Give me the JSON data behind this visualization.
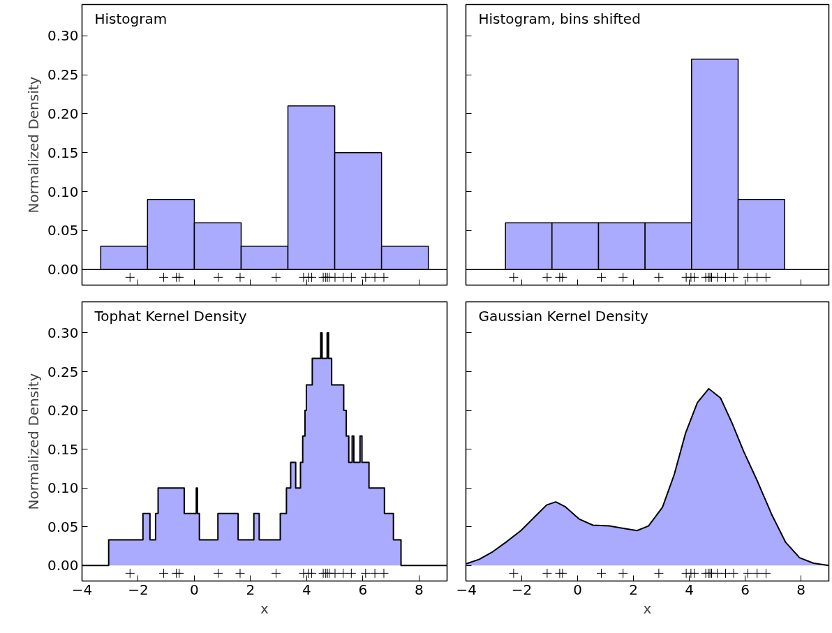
{
  "chart_data": [
    {
      "type": "histogram",
      "title": "Histogram",
      "ylabel": "Normalized Density",
      "xlim": [
        -4,
        9
      ],
      "ylim": [
        -0.02,
        0.34
      ],
      "xticks": [
        -4,
        -2,
        0,
        2,
        4,
        6,
        8
      ],
      "yticks": [
        {
          "value": 0,
          "label": "0.00"
        },
        {
          "value": 0.05,
          "label": "0.05"
        },
        {
          "value": 0.1,
          "label": "0.10"
        },
        {
          "value": 0.15,
          "label": "0.15"
        },
        {
          "value": 0.2,
          "label": "0.20"
        },
        {
          "value": 0.25,
          "label": "0.25"
        },
        {
          "value": 0.3,
          "label": "0.30"
        }
      ],
      "tick_labels": "y",
      "ref_lines": [
        {
          "axis": "y",
          "value": 0,
          "color": "#000000"
        }
      ],
      "series": [
        {
          "color": "#aaaaff",
          "bins": [
            -5,
            -3.333,
            -1.667,
            0,
            1.667,
            3.333,
            5,
            6.667,
            8.333,
            10
          ],
          "values": [
            0,
            0.03,
            0.09,
            0.06,
            0.03,
            0.21,
            0.15,
            0.03,
            0
          ]
        },
        {
          "type": "scatter",
          "marker": "cross",
          "color": "#000000",
          "x": [
            -2.29,
            -1.09,
            -0.64,
            -0.54,
            0.85,
            1.63,
            2.91,
            3.89,
            4.06,
            4.18,
            4.59,
            4.68,
            4.74,
            4.8,
            5.01,
            5.3,
            5.59,
            6.1,
            6.43,
            6.75
          ],
          "values": [
            -0.01,
            -0.01,
            -0.01,
            -0.01,
            -0.01,
            -0.01,
            -0.01,
            -0.01,
            -0.01,
            -0.01,
            -0.01,
            -0.01,
            -0.01,
            -0.01,
            -0.01,
            -0.01,
            -0.01,
            -0.01,
            -0.01,
            -0.01
          ]
        }
      ]
    },
    {
      "type": "histogram",
      "title": "Histogram, bins shifted",
      "xlim": [
        -4,
        9
      ],
      "ylim": [
        -0.02,
        0.34
      ],
      "xticks": [
        -4,
        -2,
        0,
        2,
        4,
        6,
        8
      ],
      "yticks": [
        0,
        0.05,
        0.1,
        0.15,
        0.2,
        0.25,
        0.3
      ],
      "tick_labels": false,
      "ref_lines": [
        {
          "axis": "y",
          "value": 0,
          "color": "#000000"
        }
      ],
      "series": [
        {
          "color": "#aaaaff",
          "bins": [
            -4.25,
            -2.583,
            -0.917,
            0.75,
            2.417,
            4.083,
            5.75,
            7.417,
            9.083,
            10.75
          ],
          "values": [
            0,
            0.06,
            0.06,
            0.06,
            0.06,
            0.27,
            0.09,
            0,
            0
          ]
        },
        {
          "type": "scatter",
          "marker": "cross",
          "color": "#000000",
          "x": [
            -2.29,
            -1.09,
            -0.64,
            -0.54,
            0.85,
            1.63,
            2.91,
            3.89,
            4.06,
            4.18,
            4.59,
            4.68,
            4.74,
            4.8,
            5.01,
            5.3,
            5.59,
            6.1,
            6.43,
            6.75
          ],
          "values": [
            -0.01,
            -0.01,
            -0.01,
            -0.01,
            -0.01,
            -0.01,
            -0.01,
            -0.01,
            -0.01,
            -0.01,
            -0.01,
            -0.01,
            -0.01,
            -0.01,
            -0.01,
            -0.01,
            -0.01,
            -0.01,
            -0.01,
            -0.01
          ]
        }
      ]
    },
    {
      "type": "area",
      "title": "Tophat Kernel Density",
      "xlabel": "x",
      "ylabel": "Normalized Density",
      "xlim": [
        -4,
        9
      ],
      "ylim": [
        -0.02,
        0.34
      ],
      "xticks": [
        -4,
        -2,
        0,
        2,
        4,
        6,
        8
      ],
      "yticks": [
        {
          "value": 0,
          "label": "0.00"
        },
        {
          "value": 0.05,
          "label": "0.05"
        },
        {
          "value": 0.1,
          "label": "0.10"
        },
        {
          "value": 0.15,
          "label": "0.15"
        },
        {
          "value": 0.2,
          "label": "0.20"
        },
        {
          "value": 0.25,
          "label": "0.25"
        },
        {
          "value": 0.3,
          "label": "0.30"
        }
      ],
      "series": [
        {
          "color": "#aaaaff",
          "x": [
            -4,
            -3.05,
            -3.05,
            -1.83,
            -1.83,
            -1.58,
            -1.58,
            -1.38,
            -1.38,
            -1.29,
            -1.29,
            -0.36,
            -0.36,
            0.07,
            0.07,
            0.11,
            0.11,
            0.18,
            0.18,
            0.84,
            0.84,
            1.56,
            1.56,
            2.12,
            2.12,
            2.31,
            2.31,
            3.06,
            3.06,
            3.28,
            3.28,
            3.43,
            3.43,
            3.61,
            3.61,
            3.78,
            3.78,
            3.86,
            3.86,
            3.94,
            3.94,
            3.99,
            3.99,
            4.2,
            4.2,
            4.5,
            4.5,
            4.55,
            4.55,
            4.73,
            4.73,
            4.78,
            4.78,
            4.89,
            4.89,
            5.32,
            5.32,
            5.41,
            5.41,
            5.5,
            5.5,
            5.62,
            5.62,
            5.68,
            5.68,
            5.9,
            5.9,
            5.97,
            5.97,
            6.22,
            6.22,
            6.77,
            6.77,
            7.09,
            7.09,
            7.36,
            7.36,
            9
          ],
          "values": [
            0,
            0,
            0.033,
            0.033,
            0.067,
            0.067,
            0.033,
            0.033,
            0.067,
            0.067,
            0.1,
            0.1,
            0.067,
            0.067,
            0.1,
            0.1,
            0.067,
            0.067,
            0.033,
            0.033,
            0.067,
            0.067,
            0.033,
            0.033,
            0.067,
            0.067,
            0.033,
            0.033,
            0.067,
            0.067,
            0.1,
            0.1,
            0.133,
            0.133,
            0.1,
            0.1,
            0.133,
            0.133,
            0.167,
            0.167,
            0.2,
            0.2,
            0.233,
            0.233,
            0.267,
            0.267,
            0.3,
            0.3,
            0.267,
            0.267,
            0.3,
            0.3,
            0.267,
            0.267,
            0.233,
            0.233,
            0.2,
            0.2,
            0.167,
            0.167,
            0.133,
            0.133,
            0.167,
            0.167,
            0.133,
            0.133,
            0.167,
            0.167,
            0.133,
            0.133,
            0.1,
            0.1,
            0.067,
            0.067,
            0.033,
            0.033,
            0,
            0
          ]
        },
        {
          "type": "scatter",
          "marker": "cross",
          "color": "#000000",
          "x": [
            -2.29,
            -1.09,
            -0.64,
            -0.54,
            0.85,
            1.63,
            2.91,
            3.89,
            4.06,
            4.18,
            4.59,
            4.68,
            4.74,
            4.8,
            5.01,
            5.3,
            5.59,
            6.1,
            6.43,
            6.75
          ],
          "values": [
            -0.01,
            -0.01,
            -0.01,
            -0.01,
            -0.01,
            -0.01,
            -0.01,
            -0.01,
            -0.01,
            -0.01,
            -0.01,
            -0.01,
            -0.01,
            -0.01,
            -0.01,
            -0.01,
            -0.01,
            -0.01,
            -0.01,
            -0.01
          ]
        }
      ]
    },
    {
      "type": "area",
      "title": "Gaussian Kernel Density",
      "xlabel": "x",
      "xlim": [
        -4,
        9
      ],
      "ylim": [
        -0.02,
        0.34
      ],
      "xticks": [
        -4,
        -2,
        0,
        2,
        4,
        6,
        8
      ],
      "yticks": [
        0,
        0.05,
        0.1,
        0.15,
        0.2,
        0.25,
        0.3
      ],
      "tick_labels": "x",
      "series": [
        {
          "color": "#aaaaff",
          "x": [
            -4,
            -3.52,
            -3.03,
            -2.53,
            -2.03,
            -1.53,
            -1.11,
            -0.78,
            -0.45,
            0.05,
            0.55,
            1.13,
            1.63,
            2.13,
            2.54,
            3.04,
            3.46,
            3.87,
            4.29,
            4.7,
            5.12,
            5.54,
            5.95,
            6.45,
            6.95,
            7.45,
            7.95,
            8.45,
            9
          ],
          "values": [
            0.002,
            0.008,
            0.018,
            0.031,
            0.045,
            0.063,
            0.078,
            0.082,
            0.076,
            0.06,
            0.052,
            0.051,
            0.048,
            0.045,
            0.051,
            0.075,
            0.117,
            0.171,
            0.21,
            0.228,
            0.216,
            0.183,
            0.147,
            0.108,
            0.066,
            0.03,
            0.01,
            0.003,
            0
          ]
        },
        {
          "type": "scatter",
          "marker": "cross",
          "color": "#000000",
          "x": [
            -2.29,
            -1.09,
            -0.64,
            -0.54,
            0.85,
            1.63,
            2.91,
            3.89,
            4.06,
            4.18,
            4.59,
            4.68,
            4.74,
            4.8,
            5.01,
            5.3,
            5.59,
            6.1,
            6.43,
            6.75
          ],
          "values": [
            -0.01,
            -0.01,
            -0.01,
            -0.01,
            -0.01,
            -0.01,
            -0.01,
            -0.01,
            -0.01,
            -0.01,
            -0.01,
            -0.01,
            -0.01,
            -0.01,
            -0.01,
            -0.01,
            -0.01,
            -0.01,
            -0.01,
            -0.01
          ]
        }
      ]
    }
  ]
}
